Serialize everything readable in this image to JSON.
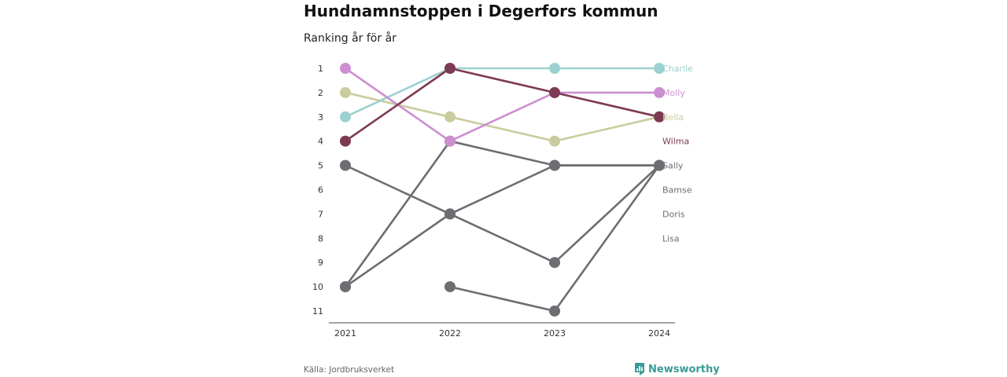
{
  "header": {
    "title": "Hundnamnstoppen i Degerfors kommun",
    "subtitle": "Ranking år för år"
  },
  "footer": {
    "source": "Källa: Jordbruksverket",
    "brand": "Newsworthy",
    "brand_icon": "newsworthy-logo-icon",
    "brand_color": "#3a9a96"
  },
  "chart_data": {
    "type": "line",
    "x": [
      "2021",
      "2022",
      "2023",
      "2024"
    ],
    "y_ticks": [
      1,
      2,
      3,
      4,
      5,
      6,
      7,
      8,
      9,
      10,
      11
    ],
    "ylim": [
      1,
      11
    ],
    "y_inverted": true,
    "grid": false,
    "series": [
      {
        "name": "",
        "color": "#6d6d72",
        "values": [
          5,
          7,
          9,
          5
        ]
      },
      {
        "name": "",
        "color": "#6d6d72",
        "values": [
          10,
          4,
          5,
          5
        ]
      },
      {
        "name": "",
        "color": "#6d6d72",
        "values": [
          10,
          7,
          5,
          5
        ]
      },
      {
        "name": "",
        "color": "#6d6d72",
        "values": [
          null,
          10,
          11,
          5
        ]
      },
      {
        "name": "",
        "color": "#c9cc9c",
        "values": [
          2,
          3,
          4,
          3
        ]
      },
      {
        "name": "",
        "color": "#9bd1d0",
        "values": [
          3,
          1,
          1,
          1
        ]
      },
      {
        "name": "",
        "color": "#cc8fd1",
        "values": [
          1,
          4,
          2,
          2
        ]
      },
      {
        "name": "",
        "color": "#7e3a52",
        "values": [
          4,
          1,
          2,
          3
        ]
      }
    ],
    "end_labels": [
      {
        "text": "Charlie",
        "rank": 1,
        "color": "#9bd1d0"
      },
      {
        "text": "Molly",
        "rank": 2,
        "color": "#cc8fd1"
      },
      {
        "text": "Bella",
        "rank": 3,
        "color": "#c9cc9c"
      },
      {
        "text": "Wilma",
        "rank": 4,
        "color": "#7e3a52"
      },
      {
        "text": "Sally",
        "rank": 5,
        "color": "#6d6d72"
      },
      {
        "text": "Bamse",
        "rank": 6,
        "color": "#6d6d72"
      },
      {
        "text": "Doris",
        "rank": 7,
        "color": "#6d6d72"
      },
      {
        "text": "Lisa",
        "rank": 8,
        "color": "#6d6d72"
      }
    ]
  }
}
